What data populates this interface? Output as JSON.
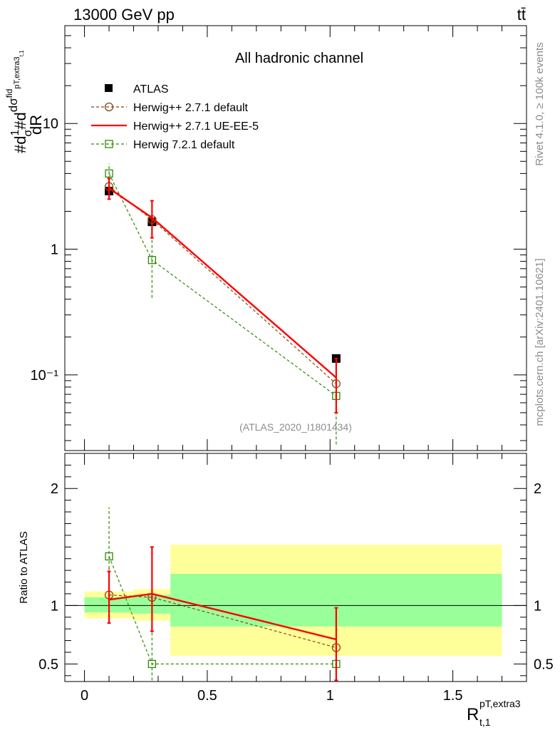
{
  "header": {
    "energy_label": "13000 GeV pp",
    "process_label": "tt̄",
    "side_rivet": "Rivet 4.1.0, ≥ 100k events",
    "side_mcplots": "mcplots.cern.ch [arXiv:2401.10621]"
  },
  "colors": {
    "atlas": "#000000",
    "herwig_default": "#8b4513",
    "herwig_ueee5": "#ff0000",
    "herwig721": "#2e8b00",
    "band_stat": "#99ff99",
    "band_total": "#ffff99"
  },
  "chart_data": [
    {
      "type": "scatter",
      "title": "All hadronic channel",
      "analysis_id": "(ATLAS_2020_I1801434)",
      "yscale": "log",
      "ylabel_parts": {
        "hash1": "#d",
        "one": "1",
        "sigma": "σ",
        "hash2": "#d",
        "dsigma": "dσ",
        "fid": "fid",
        "sub": "pT,extra3",
        "subsub": "t,1",
        "dR": "dR"
      },
      "xlim": [
        -0.08,
        1.8
      ],
      "ylim": [
        0.025,
        60
      ],
      "x_ticks": [
        "0",
        "0.5",
        "1",
        "1.5"
      ],
      "y_tick_labels": [
        "10⁻¹",
        "1",
        "10"
      ],
      "legend": {
        "position": "top-left",
        "entries": [
          "ATLAS",
          "Herwig++ 2.7.1 default",
          "Herwig++ 2.7.1 UE-EE-5",
          "Herwig 7.2.1 default"
        ]
      },
      "series": [
        {
          "name": "ATLAS",
          "x": [
            0.1,
            0.275,
            1.025
          ],
          "y": [
            2.9,
            1.65,
            0.135
          ]
        },
        {
          "name": "Herwig++ 2.7.1 default",
          "x": [
            0.1,
            0.275,
            1.025
          ],
          "y": [
            3.15,
            1.72,
            0.085
          ],
          "err_low": [
            0.55,
            0.5,
            0.028
          ],
          "err_high": [
            0.6,
            0.6,
            0.04
          ]
        },
        {
          "name": "Herwig++ 2.7.1 UE-EE-5",
          "x": [
            0.1,
            0.275,
            1.025
          ],
          "y": [
            3.05,
            1.78,
            0.095
          ],
          "err_low": [
            0.55,
            0.55,
            0.045
          ],
          "err_high": [
            0.6,
            0.65,
            0.04
          ]
        },
        {
          "name": "Herwig 7.2.1 default",
          "x": [
            0.1,
            0.275,
            1.025
          ],
          "y": [
            4.0,
            0.82,
            0.068
          ],
          "err_low": [
            0.7,
            0.41,
            0.04
          ],
          "err_high": [
            0.8,
            0.45,
            0.042
          ]
        }
      ]
    },
    {
      "type": "scatter",
      "ylabel": "Ratio to ATLAS",
      "xlabel_main": "R",
      "xlabel_sup": "pT,extra3",
      "xlabel_sub": "t,1",
      "xlim": [
        -0.08,
        1.8
      ],
      "ylim": [
        0.35,
        2.3
      ],
      "x_ticks": [
        "0",
        "0.5",
        "1",
        "1.5"
      ],
      "y_ticks": [
        "0.5",
        "1",
        "2"
      ],
      "bands": [
        {
          "x": [
            0.0,
            0.2
          ],
          "stat": [
            0.94,
            1.07
          ],
          "total": [
            0.89,
            1.12
          ]
        },
        {
          "x": [
            0.2,
            0.35
          ],
          "stat": [
            0.93,
            1.09
          ],
          "total": [
            0.87,
            1.14
          ]
        },
        {
          "x": [
            0.35,
            1.7
          ],
          "stat": [
            0.82,
            1.27
          ],
          "total": [
            0.57,
            1.52
          ]
        }
      ],
      "series": [
        {
          "name": "Herwig++ 2.7.1 default",
          "x": [
            0.1,
            0.275,
            1.025
          ],
          "y": [
            1.09,
            1.07,
            0.64
          ],
          "err_low": [
            0.22,
            0.3,
            0.25
          ],
          "err_high": [
            0.25,
            0.38,
            0.3
          ]
        },
        {
          "name": "Herwig++ 2.7.1 UE-EE-5",
          "x": [
            0.1,
            0.275,
            1.025
          ],
          "y": [
            1.05,
            1.1,
            0.71
          ],
          "err_low": [
            0.2,
            0.32,
            0.35
          ],
          "err_high": [
            0.24,
            0.4,
            0.27
          ]
        },
        {
          "name": "Herwig 7.2.1 default",
          "x": [
            0.1,
            0.275,
            1.025
          ],
          "y": [
            1.42,
            0.5,
            0.5
          ],
          "err_low": [
            0.32,
            0.14,
            0.14
          ],
          "err_high": [
            0.42,
            0.28,
            0.3
          ]
        }
      ]
    }
  ]
}
